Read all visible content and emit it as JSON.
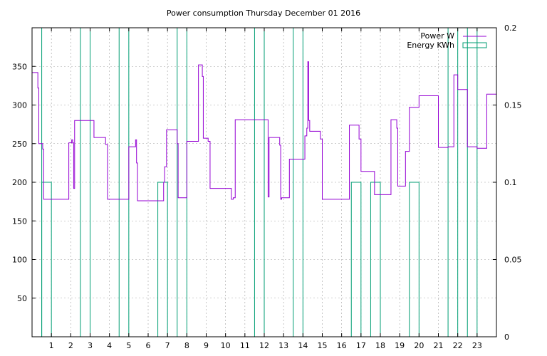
{
  "chart_data": {
    "type": "line",
    "title": "Power consumption Thursday December 01 2016",
    "xlabel": "",
    "ylabel": "",
    "y2label": "",
    "xlim": [
      0,
      24
    ],
    "ylim": [
      0,
      400
    ],
    "y2lim": [
      0,
      0.2
    ],
    "x_ticks": [
      1,
      2,
      3,
      4,
      5,
      6,
      7,
      8,
      9,
      10,
      11,
      12,
      13,
      14,
      15,
      16,
      17,
      18,
      19,
      20,
      21,
      22,
      23
    ],
    "y_ticks": [
      50,
      100,
      150,
      200,
      250,
      300,
      350
    ],
    "y2_ticks": [
      0,
      0.05,
      0.1,
      0.15,
      0.2
    ],
    "y2_tick_labels": [
      "0",
      "0.05",
      "0.1",
      "0.15",
      "0.2"
    ],
    "grid": true,
    "legend_position": "top-right",
    "colors": {
      "power": "#9400d3",
      "energy": "#009e73"
    },
    "series": [
      {
        "name": "Power W",
        "axis": "left",
        "style": "step",
        "x": [
          0,
          0.3,
          0.35,
          0.5,
          0.55,
          0.6,
          0.7,
          1.0,
          1.5,
          1.9,
          2.0,
          2.05,
          2.1,
          2.15,
          2.2,
          2.3,
          2.5,
          3.0,
          3.2,
          3.5,
          3.8,
          3.9,
          4.0,
          4.5,
          4.8,
          5.0,
          5.1,
          5.2,
          5.35,
          5.4,
          5.45,
          5.6,
          5.8,
          6.5,
          6.8,
          6.85,
          6.95,
          7.0,
          7.5,
          7.55,
          7.6,
          8.0,
          8.1,
          8.5,
          8.6,
          8.8,
          8.85,
          8.9,
          9.1,
          9.2,
          9.5,
          10.0,
          10.3,
          10.4,
          10.5,
          11.5,
          12.0,
          12.2,
          12.25,
          12.3,
          12.8,
          12.85,
          12.9,
          13.3,
          13.35,
          14.0,
          14.1,
          14.2,
          14.25,
          14.3,
          14.35,
          14.4,
          14.5,
          14.9,
          15.0,
          16.0,
          16.4,
          16.8,
          16.9,
          17.0,
          17.5,
          17.7,
          18.0,
          18.5,
          18.55,
          18.6,
          18.8,
          18.85,
          18.9,
          19.0,
          19.3,
          19.5,
          20.0,
          20.5,
          21.0,
          21.4,
          21.5,
          21.8,
          22.0,
          22.5,
          22.8,
          23.0,
          23.3,
          23.5,
          23.7,
          24.0
        ],
        "values": [
          342,
          322,
          250,
          250,
          243,
          178,
          178,
          178,
          178,
          251,
          251,
          255,
          251,
          192,
          280,
          280,
          280,
          280,
          258,
          258,
          249,
          178,
          178,
          178,
          178,
          246,
          246,
          246,
          255,
          225,
          176,
          176,
          176,
          176,
          200,
          220,
          268,
          268,
          250,
          180,
          180,
          253,
          253,
          253,
          352,
          337,
          257,
          257,
          253,
          192,
          192,
          192,
          178,
          180,
          281,
          281,
          281,
          181,
          258,
          258,
          248,
          178,
          180,
          230,
          230,
          230,
          260,
          270,
          356,
          280,
          266,
          266,
          266,
          256,
          178,
          178,
          274,
          274,
          256,
          214,
          214,
          184,
          184,
          184,
          281,
          281,
          281,
          270,
          195,
          195,
          240,
          297,
          312,
          312,
          245,
          245,
          246,
          339,
          320,
          246,
          246,
          244,
          244,
          314,
          314,
          314
        ]
      },
      {
        "name": "Energy KWh",
        "axis": "right",
        "style": "steps",
        "segments": [
          [
            0.0,
            0.5,
            0.2
          ],
          [
            0.5,
            1.0,
            0.1
          ],
          [
            1.0,
            2.5,
            0.0
          ],
          [
            2.5,
            3.0,
            0.2
          ],
          [
            3.0,
            4.5,
            0.0
          ],
          [
            4.5,
            5.0,
            0.2
          ],
          [
            5.0,
            6.5,
            0.0
          ],
          [
            6.5,
            7.0,
            0.1
          ],
          [
            7.0,
            7.5,
            0.0
          ],
          [
            7.5,
            8.0,
            0.2
          ],
          [
            8.0,
            11.5,
            0.0
          ],
          [
            11.5,
            12.0,
            0.2
          ],
          [
            12.0,
            13.5,
            0.0
          ],
          [
            13.5,
            14.0,
            0.2
          ],
          [
            14.0,
            16.5,
            0.0
          ],
          [
            16.5,
            17.0,
            0.1
          ],
          [
            17.0,
            17.5,
            0.0
          ],
          [
            17.5,
            18.0,
            0.1
          ],
          [
            18.0,
            19.5,
            0.0
          ],
          [
            19.5,
            20.0,
            0.1
          ],
          [
            20.0,
            21.5,
            0.0
          ],
          [
            21.5,
            22.0,
            0.2
          ],
          [
            22.0,
            22.5,
            0.0
          ],
          [
            22.5,
            23.0,
            0.2
          ],
          [
            23.0,
            24.0,
            0.0
          ]
        ]
      }
    ]
  }
}
